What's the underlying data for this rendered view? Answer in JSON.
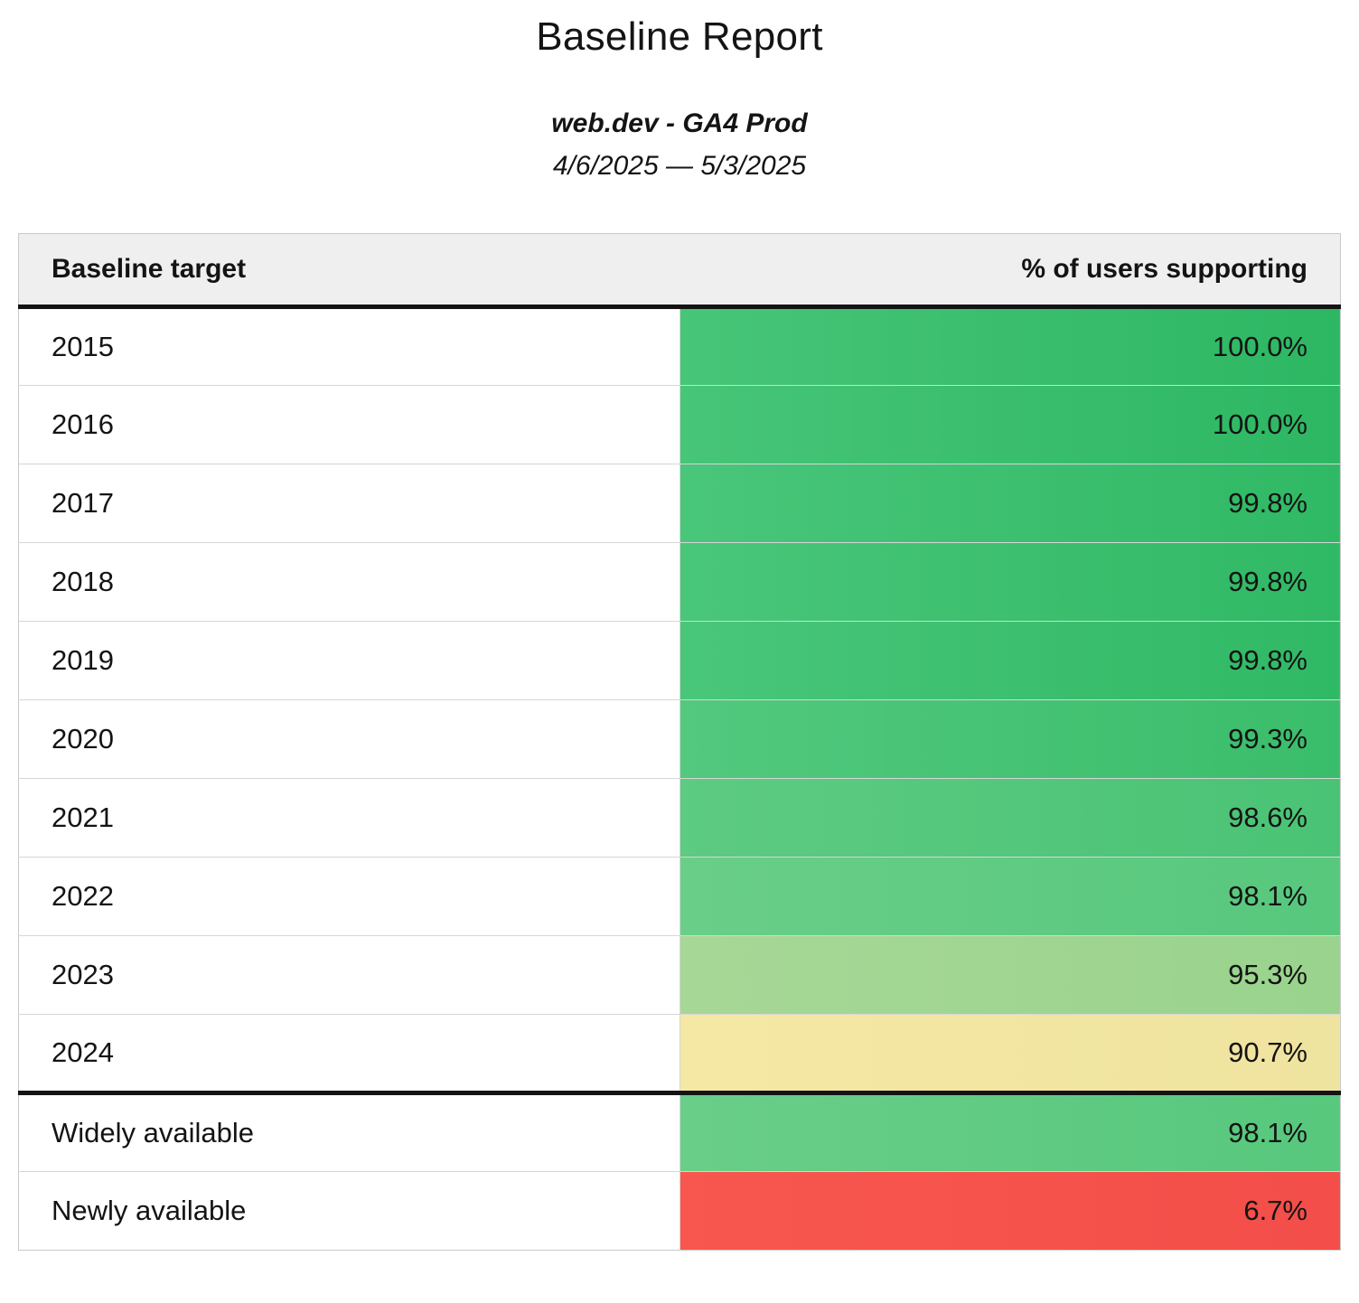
{
  "report": {
    "title": "Baseline Report",
    "property_name": "web.dev - GA4 Prod",
    "date_range": "4/6/2025 — 5/3/2025"
  },
  "colors": {
    "header_bg": "#efefef",
    "row_border": "#d6d6d6",
    "divider_black": "#141414",
    "green_full": "#2db763",
    "light_green": "#a7d796",
    "yellow": "#f2e5a1",
    "red": "#f5544d"
  },
  "table": {
    "header": {
      "target_label": "Baseline target",
      "support_label": "% of users supporting"
    },
    "rows": [
      {
        "label": "2015",
        "value": "100.0%",
        "percent": 100.0,
        "bg": [
          "#47c578",
          "#2db763"
        ]
      },
      {
        "label": "2016",
        "value": "100.0%",
        "percent": 100.0,
        "bg": [
          "#47c578",
          "#2db763"
        ]
      },
      {
        "label": "2017",
        "value": "99.8%",
        "percent": 99.8,
        "bg": [
          "#49c67a",
          "#30b965"
        ]
      },
      {
        "label": "2018",
        "value": "99.8%",
        "percent": 99.8,
        "bg": [
          "#49c67a",
          "#30b965"
        ]
      },
      {
        "label": "2019",
        "value": "99.8%",
        "percent": 99.8,
        "bg": [
          "#49c67a",
          "#30b965"
        ]
      },
      {
        "label": "2020",
        "value": "99.3%",
        "percent": 99.3,
        "bg": [
          "#52c97e",
          "#3abd6b"
        ]
      },
      {
        "label": "2021",
        "value": "98.6%",
        "percent": 98.6,
        "bg": [
          "#5dcb82",
          "#4ac375"
        ]
      },
      {
        "label": "2022",
        "value": "98.1%",
        "percent": 98.1,
        "bg": [
          "#69ce88",
          "#57c87d"
        ]
      },
      {
        "label": "2023",
        "value": "95.3%",
        "percent": 95.3,
        "bg": [
          "#a7d796",
          "#99d38d"
        ]
      },
      {
        "label": "2024",
        "value": "90.7%",
        "percent": 90.7,
        "bg": [
          "#f5e8a4",
          "#efe3a0"
        ]
      },
      {
        "label": "Widely available",
        "value": "98.1%",
        "percent": 98.1,
        "bg": [
          "#69ce88",
          "#57c87d"
        ]
      },
      {
        "label": "Newly available",
        "value": "6.7%",
        "percent": 6.7,
        "bg": [
          "#f7574f",
          "#f34e49"
        ]
      }
    ]
  }
}
